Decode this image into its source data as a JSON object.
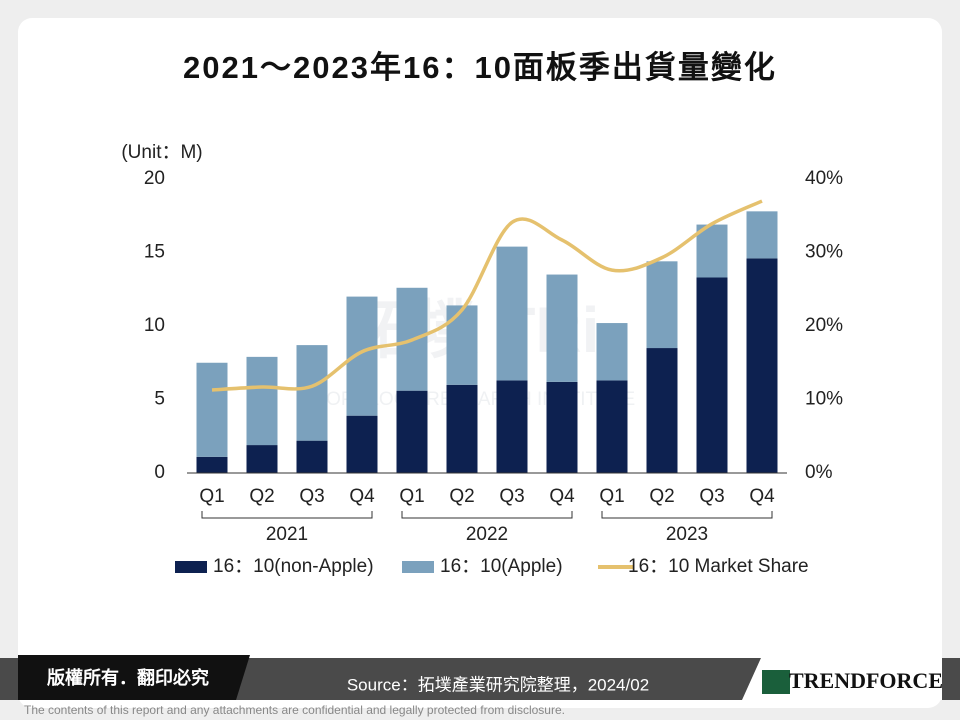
{
  "chart_data": {
    "type": "bar",
    "stacked": true,
    "title": "2021～2023年16：10面板季出貨量變化",
    "y_label": "(Unit：M)",
    "categories": [
      "Q1",
      "Q2",
      "Q3",
      "Q4",
      "Q1",
      "Q2",
      "Q3",
      "Q4",
      "Q1",
      "Q2",
      "Q3",
      "Q4"
    ],
    "groups": [
      {
        "label": "2021",
        "span": [
          0,
          3
        ]
      },
      {
        "label": "2022",
        "span": [
          4,
          7
        ]
      },
      {
        "label": "2023",
        "span": [
          8,
          11
        ]
      }
    ],
    "series": [
      {
        "name": "16：10(non-Apple)",
        "type": "bar",
        "color": "#0d2150",
        "values": [
          1.1,
          1.9,
          2.2,
          3.9,
          5.6,
          6.0,
          6.3,
          6.2,
          6.3,
          8.5,
          13.3,
          14.6
        ]
      },
      {
        "name": "16：10(Apple)",
        "type": "bar",
        "color": "#7ba1bd",
        "values": [
          6.4,
          6.0,
          6.5,
          8.1,
          7.0,
          5.4,
          9.1,
          7.3,
          3.9,
          5.9,
          3.6,
          3.2
        ]
      },
      {
        "name": "16：10 Market Share",
        "type": "line",
        "axis": "y2",
        "color": "#e5c16e",
        "values": [
          11.3,
          11.7,
          11.8,
          16.5,
          18.1,
          22.2,
          34.1,
          31.7,
          27.6,
          29.3,
          33.9,
          37.0
        ]
      }
    ],
    "ylim": [
      0,
      20
    ],
    "yticks": [
      0,
      5,
      10,
      15,
      20
    ],
    "y2lim": [
      0,
      40
    ],
    "y2ticks": [
      {
        "value": 0,
        "label": "0%"
      },
      {
        "value": 10,
        "label": "10%"
      },
      {
        "value": 20,
        "label": "20%"
      },
      {
        "value": 30,
        "label": "30%"
      },
      {
        "value": 40,
        "label": "40%"
      }
    ],
    "legend": "bottom",
    "grid": false,
    "watermark": {
      "logo": "拓墣 TRi",
      "text": "TOPOLOGY RESEARCH INSTITUTE"
    }
  },
  "footer": {
    "copyright": "版權所有．翻印必究",
    "source": "Source：拓墣產業研究院整理，2024/02",
    "brand": "TRENDFORCE",
    "disclaimer": "The contents of this report and any attachments are confidential and legally protected from disclosure."
  }
}
